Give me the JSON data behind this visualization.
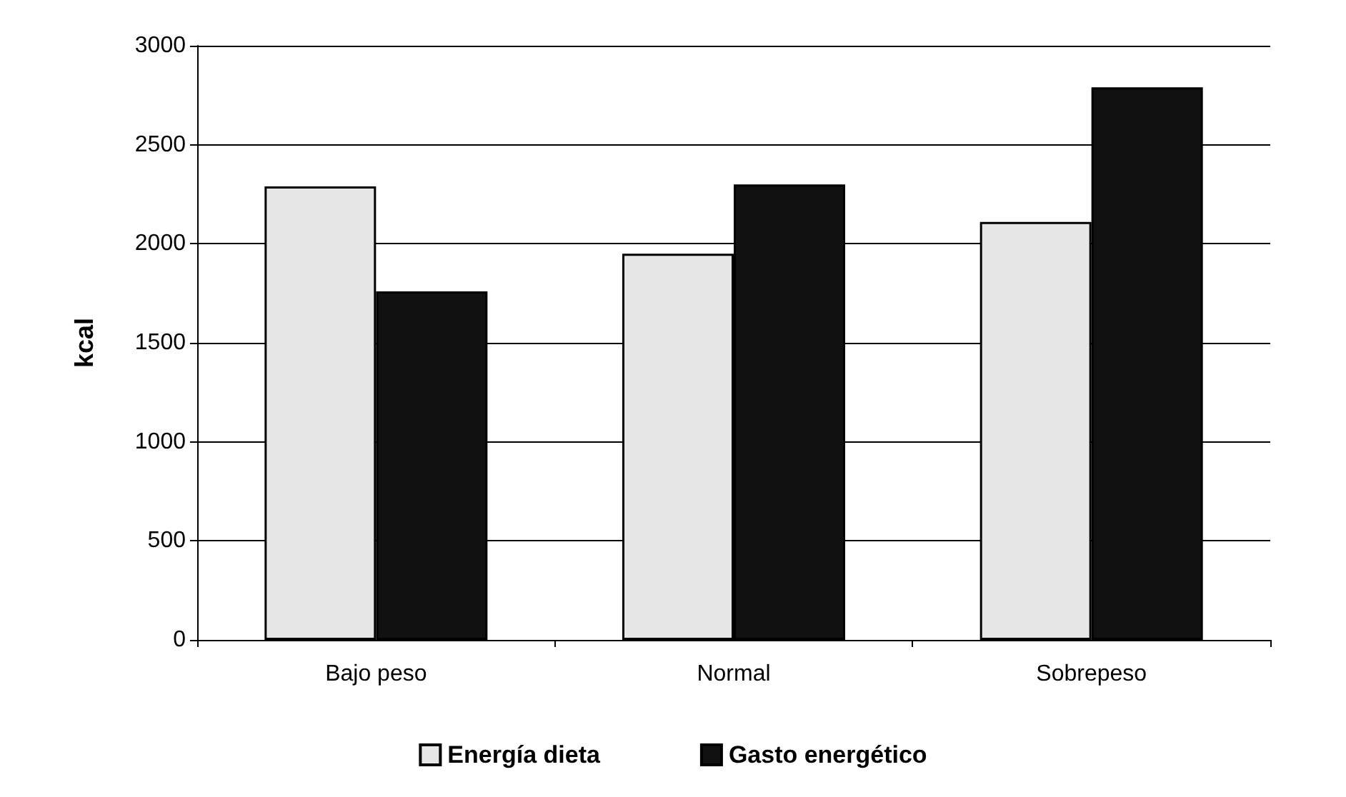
{
  "chart_data": {
    "type": "bar",
    "ylabel": "kcal",
    "categories": [
      "Bajo peso",
      "Normal",
      "Sobrepeso"
    ],
    "series": [
      {
        "name": "Energía dieta",
        "color": "#e6e6e6",
        "values": [
          2290,
          1950,
          2110
        ]
      },
      {
        "name": "Gasto energético",
        "color": "#111111",
        "values": [
          1760,
          2300,
          2790
        ]
      }
    ],
    "ylim": [
      0,
      3000
    ],
    "yticks": [
      0,
      500,
      1000,
      1500,
      2000,
      2500,
      3000
    ],
    "grid": "y",
    "legend": "bottom"
  }
}
